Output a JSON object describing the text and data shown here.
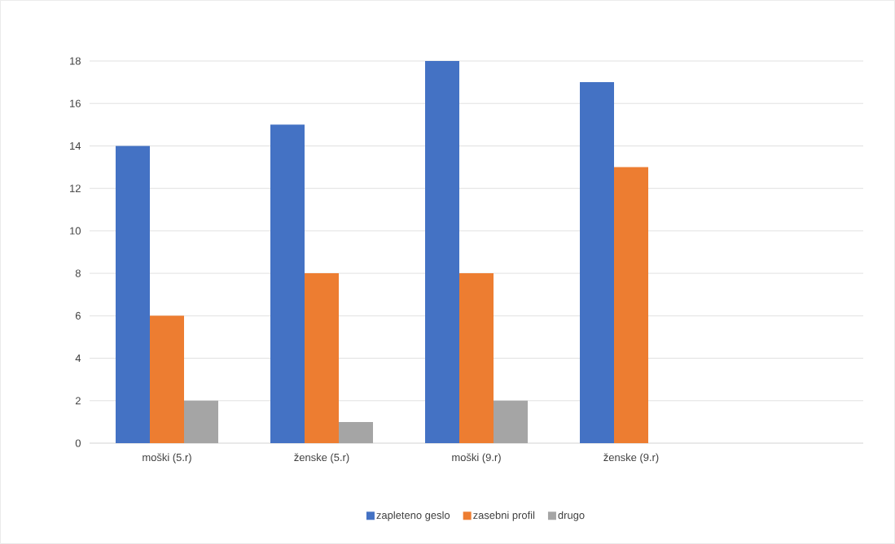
{
  "chart_data": {
    "type": "bar",
    "categories": [
      "moški (5.r)",
      "ženske (5.r)",
      "moški (9.r)",
      "ženske (9.r)",
      null
    ],
    "series": [
      {
        "name": "zapleteno geslo",
        "color": "#4472c4",
        "values": [
          14,
          15,
          18,
          17,
          null
        ]
      },
      {
        "name": "zasebni profil",
        "color": "#ed7d31",
        "values": [
          6,
          8,
          8,
          13,
          null
        ]
      },
      {
        "name": "drugo",
        "color": "#a5a5a5",
        "values": [
          2,
          1,
          2,
          0,
          null
        ]
      }
    ],
    "ylim": [
      0,
      18
    ],
    "yticks": [
      0,
      2,
      4,
      6,
      8,
      10,
      12,
      14,
      16,
      18
    ],
    "grid": "y",
    "legend": "bottom"
  }
}
